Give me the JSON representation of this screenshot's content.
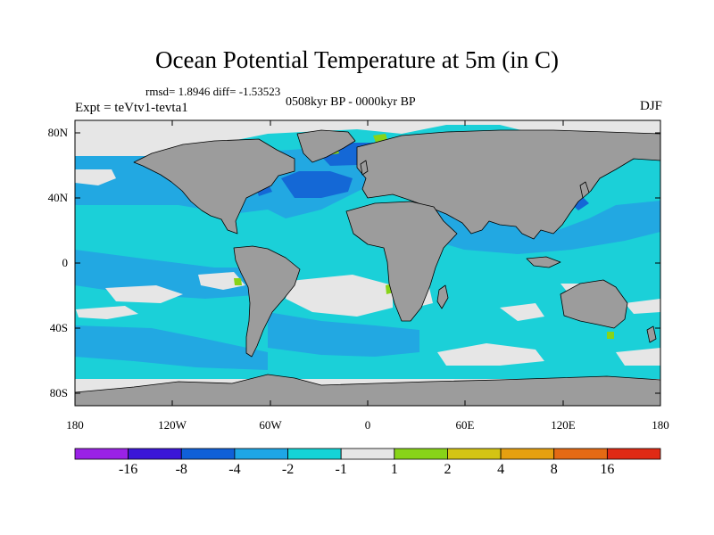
{
  "title": "Ocean Potential Temperature at 5m (in C)",
  "stats": "rmsd= 1.8946 diff= -1.53523",
  "period": "0508kyr BP - 0000kyr BP",
  "experiment": "Expt = teVtv1-tevta1",
  "season": "DJF",
  "map": {
    "lat_ticks": [
      "80N",
      "40N",
      "0",
      "40S",
      "80S"
    ],
    "lon_ticks": [
      "180",
      "120W",
      "60W",
      "0",
      "60E",
      "120E",
      "180"
    ]
  },
  "colorbar": {
    "colors": [
      "#9a22e6",
      "#3b16d8",
      "#1060d8",
      "#1ea6e6",
      "#14d4d6",
      "#e6e6e6",
      "#88d418",
      "#d4c414",
      "#e6a010",
      "#e46a14",
      "#e02a14"
    ],
    "labels": [
      "-16",
      "-8",
      "-4",
      "-2",
      "-1",
      "1",
      "2",
      "4",
      "8",
      "16"
    ]
  },
  "palette": {
    "land": "#9c9c9c",
    "ocean": "#1bd0d8",
    "mid_blue": "#22a8e2",
    "deep_blue": "#1468d6",
    "neutral": "#e6e6e6"
  }
}
